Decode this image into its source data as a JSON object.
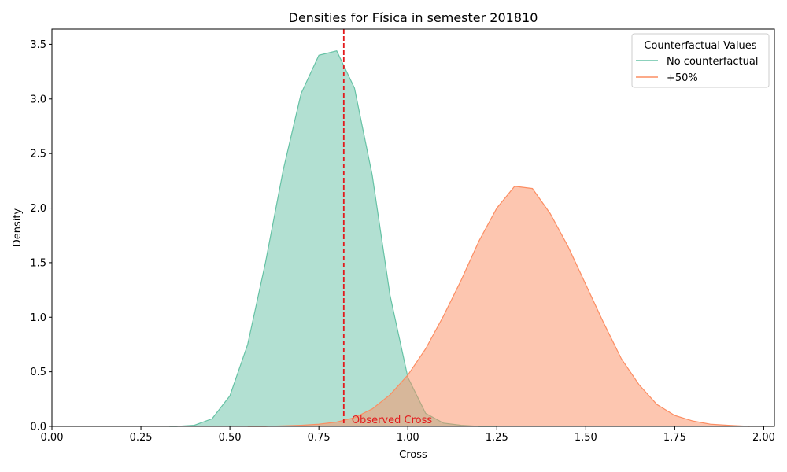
{
  "chart_data": {
    "type": "area",
    "title": "Densities for Física in semester 201810",
    "xlabel": "Cross",
    "ylabel": "Density",
    "xlim": [
      0.0,
      2.03
    ],
    "ylim": [
      0.0,
      3.64
    ],
    "xticks": [
      0.0,
      0.25,
      0.5,
      0.75,
      1.0,
      1.25,
      1.5,
      1.75,
      2.0
    ],
    "xtick_labels": [
      "0.00",
      "0.25",
      "0.50",
      "0.75",
      "1.00",
      "1.25",
      "1.50",
      "1.75",
      "2.00"
    ],
    "yticks": [
      0.0,
      0.5,
      1.0,
      1.5,
      2.0,
      2.5,
      3.0,
      3.5
    ],
    "ytick_labels": [
      "0.0",
      "0.5",
      "1.0",
      "1.5",
      "2.0",
      "2.5",
      "3.0",
      "3.5"
    ],
    "grid": false,
    "legend": {
      "title": "Counterfactual Values",
      "placement": "top-right"
    },
    "series": [
      {
        "name": "No counterfactual",
        "color": "#66c2a5",
        "fill": "#66c2a5",
        "x": [
          0.33,
          0.35,
          0.4,
          0.45,
          0.5,
          0.55,
          0.6,
          0.65,
          0.7,
          0.75,
          0.8,
          0.85,
          0.9,
          0.95,
          1.0,
          1.05,
          1.1,
          1.15,
          1.2,
          1.25
        ],
        "y": [
          0.0,
          0.0,
          0.01,
          0.07,
          0.28,
          0.75,
          1.5,
          2.35,
          3.05,
          3.4,
          3.44,
          3.1,
          2.3,
          1.2,
          0.45,
          0.12,
          0.03,
          0.01,
          0.0,
          0.0
        ]
      },
      {
        "name": "+50%",
        "color": "#fc8d62",
        "fill": "#fc8d62",
        "x": [
          0.55,
          0.6,
          0.65,
          0.7,
          0.75,
          0.8,
          0.85,
          0.9,
          0.95,
          1.0,
          1.05,
          1.1,
          1.15,
          1.2,
          1.25,
          1.3,
          1.35,
          1.4,
          1.45,
          1.5,
          1.55,
          1.6,
          1.65,
          1.7,
          1.75,
          1.8,
          1.85,
          1.9,
          1.96
        ],
        "y": [
          0.0,
          0.0,
          0.005,
          0.01,
          0.02,
          0.04,
          0.08,
          0.16,
          0.29,
          0.47,
          0.71,
          1.01,
          1.34,
          1.7,
          2.0,
          2.2,
          2.18,
          1.95,
          1.65,
          1.3,
          0.95,
          0.62,
          0.38,
          0.2,
          0.1,
          0.05,
          0.02,
          0.01,
          0.0
        ]
      }
    ],
    "reference_line": {
      "x": 0.82,
      "label": "Observed Cross",
      "color": "#e31a1c",
      "style": "dashed"
    }
  }
}
